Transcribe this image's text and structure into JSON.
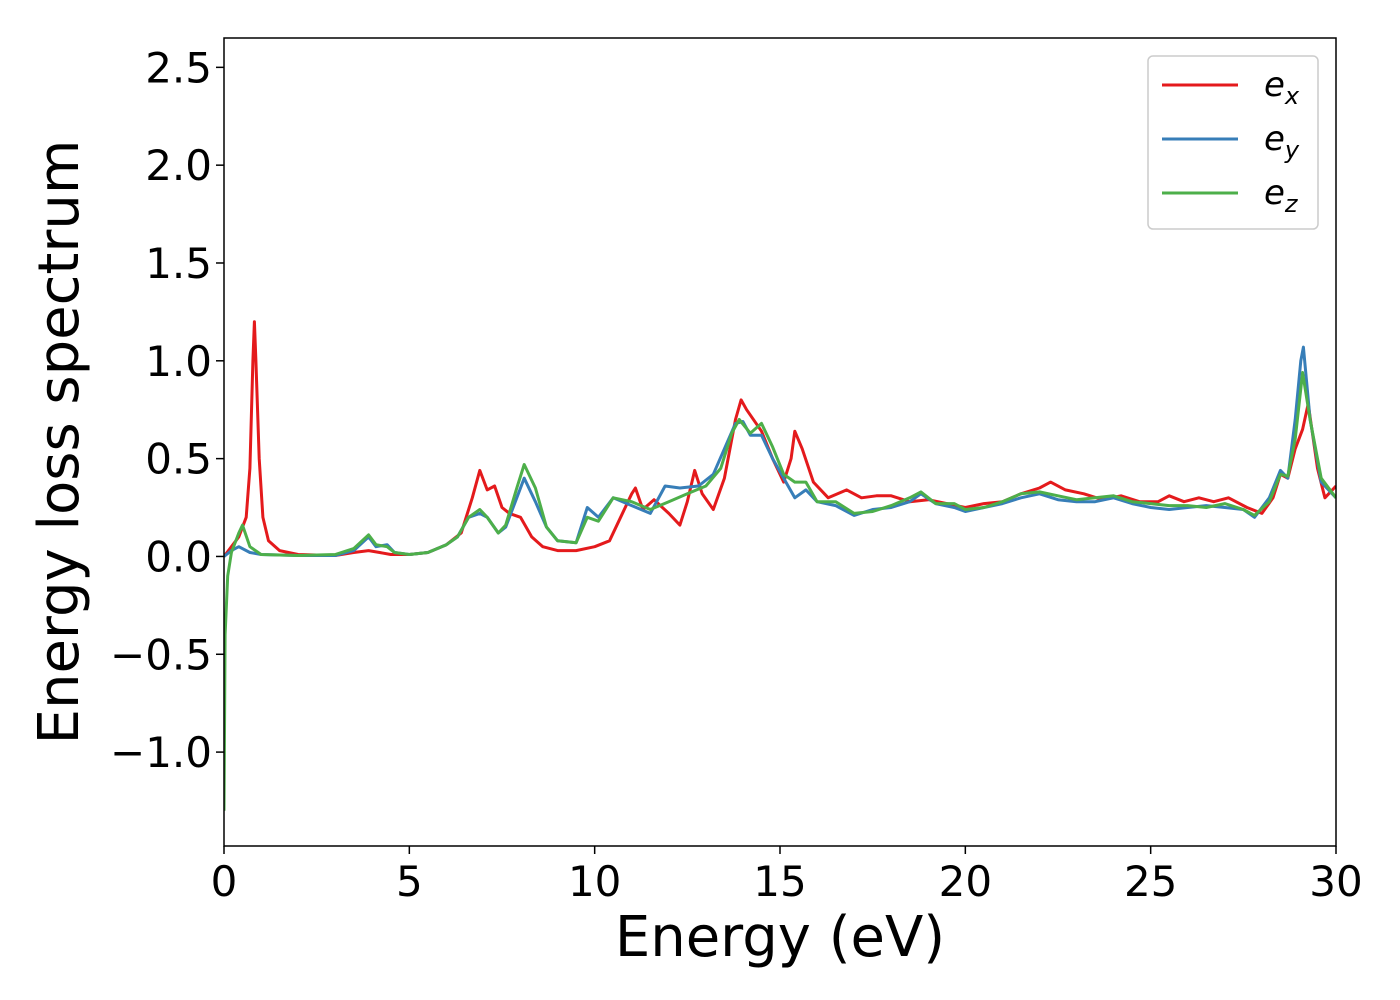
{
  "chart_data": {
    "type": "line",
    "title": "",
    "xlabel": "Energy (eV)",
    "ylabel": "Energy loss spectrum",
    "xlim": [
      0,
      30
    ],
    "ylim": [
      -1.48,
      2.65
    ],
    "xticks": [
      0,
      5,
      10,
      15,
      20,
      25,
      30
    ],
    "yticks": [
      -1.0,
      -0.5,
      0.0,
      0.5,
      1.0,
      1.5,
      2.0,
      2.5
    ],
    "xtick_labels": [
      "0",
      "5",
      "10",
      "15",
      "20",
      "25",
      "30"
    ],
    "ytick_labels": [
      "−1.0",
      "−0.5",
      "0.0",
      "0.5",
      "1.0",
      "1.5",
      "2.0",
      "2.5"
    ],
    "grid": false,
    "legend_position": "top-right",
    "series": [
      {
        "name": "e_x",
        "label_main": "e",
        "label_sub": "x",
        "color": "#e41a1c",
        "points": [
          [
            0,
            0.0
          ],
          [
            0.2,
            0.05
          ],
          [
            0.4,
            0.1
          ],
          [
            0.6,
            0.2
          ],
          [
            0.7,
            0.45
          ],
          [
            0.78,
            1.0
          ],
          [
            0.82,
            1.2
          ],
          [
            0.86,
            1.0
          ],
          [
            0.95,
            0.5
          ],
          [
            1.05,
            0.2
          ],
          [
            1.2,
            0.08
          ],
          [
            1.5,
            0.03
          ],
          [
            2,
            0.01
          ],
          [
            3,
            0.005
          ],
          [
            3.5,
            0.02
          ],
          [
            3.9,
            0.03
          ],
          [
            4.2,
            0.02
          ],
          [
            4.5,
            0.01
          ],
          [
            5,
            0.01
          ],
          [
            5.5,
            0.02
          ],
          [
            6,
            0.06
          ],
          [
            6.4,
            0.12
          ],
          [
            6.7,
            0.3
          ],
          [
            6.9,
            0.44
          ],
          [
            7.1,
            0.34
          ],
          [
            7.3,
            0.36
          ],
          [
            7.5,
            0.25
          ],
          [
            7.7,
            0.22
          ],
          [
            8,
            0.2
          ],
          [
            8.3,
            0.1
          ],
          [
            8.6,
            0.05
          ],
          [
            9,
            0.03
          ],
          [
            9.5,
            0.03
          ],
          [
            10,
            0.05
          ],
          [
            10.4,
            0.08
          ],
          [
            10.7,
            0.2
          ],
          [
            11,
            0.32
          ],
          [
            11.1,
            0.35
          ],
          [
            11.3,
            0.24
          ],
          [
            11.6,
            0.29
          ],
          [
            12,
            0.22
          ],
          [
            12.3,
            0.16
          ],
          [
            12.5,
            0.28
          ],
          [
            12.7,
            0.44
          ],
          [
            12.9,
            0.32
          ],
          [
            13.2,
            0.24
          ],
          [
            13.5,
            0.4
          ],
          [
            13.8,
            0.7
          ],
          [
            13.95,
            0.8
          ],
          [
            14.1,
            0.75
          ],
          [
            14.5,
            0.64
          ],
          [
            14.8,
            0.5
          ],
          [
            15.1,
            0.38
          ],
          [
            15.3,
            0.5
          ],
          [
            15.4,
            0.64
          ],
          [
            15.6,
            0.55
          ],
          [
            15.9,
            0.38
          ],
          [
            16.3,
            0.3
          ],
          [
            16.8,
            0.34
          ],
          [
            17.2,
            0.3
          ],
          [
            17.6,
            0.31
          ],
          [
            18,
            0.31
          ],
          [
            18.5,
            0.28
          ],
          [
            19,
            0.29
          ],
          [
            19.5,
            0.27
          ],
          [
            20,
            0.25
          ],
          [
            20.5,
            0.27
          ],
          [
            21,
            0.28
          ],
          [
            21.5,
            0.32
          ],
          [
            22,
            0.35
          ],
          [
            22.3,
            0.38
          ],
          [
            22.7,
            0.34
          ],
          [
            23.2,
            0.32
          ],
          [
            23.7,
            0.29
          ],
          [
            24.2,
            0.31
          ],
          [
            24.7,
            0.28
          ],
          [
            25.2,
            0.28
          ],
          [
            25.5,
            0.31
          ],
          [
            25.9,
            0.28
          ],
          [
            26.3,
            0.3
          ],
          [
            26.7,
            0.28
          ],
          [
            27.1,
            0.3
          ],
          [
            27.6,
            0.25
          ],
          [
            28,
            0.22
          ],
          [
            28.3,
            0.3
          ],
          [
            28.5,
            0.42
          ],
          [
            28.7,
            0.4
          ],
          [
            28.9,
            0.55
          ],
          [
            29.1,
            0.65
          ],
          [
            29.25,
            0.78
          ],
          [
            29.5,
            0.45
          ],
          [
            29.7,
            0.3
          ],
          [
            30,
            0.36
          ]
        ]
      },
      {
        "name": "e_y",
        "label_main": "e",
        "label_sub": "y",
        "color": "#377eb8",
        "points": [
          [
            0,
            0.0
          ],
          [
            0.2,
            0.03
          ],
          [
            0.4,
            0.05
          ],
          [
            0.7,
            0.02
          ],
          [
            1,
            0.01
          ],
          [
            2,
            0.005
          ],
          [
            3,
            0.005
          ],
          [
            3.5,
            0.03
          ],
          [
            3.9,
            0.1
          ],
          [
            4.1,
            0.05
          ],
          [
            4.4,
            0.06
          ],
          [
            4.6,
            0.02
          ],
          [
            5,
            0.01
          ],
          [
            5.5,
            0.02
          ],
          [
            6,
            0.06
          ],
          [
            6.3,
            0.1
          ],
          [
            6.6,
            0.2
          ],
          [
            6.9,
            0.22
          ],
          [
            7.1,
            0.2
          ],
          [
            7.4,
            0.12
          ],
          [
            7.6,
            0.15
          ],
          [
            7.9,
            0.3
          ],
          [
            8.1,
            0.4
          ],
          [
            8.4,
            0.28
          ],
          [
            8.7,
            0.15
          ],
          [
            9,
            0.08
          ],
          [
            9.5,
            0.07
          ],
          [
            9.8,
            0.25
          ],
          [
            10.1,
            0.2
          ],
          [
            10.5,
            0.3
          ],
          [
            11,
            0.26
          ],
          [
            11.5,
            0.22
          ],
          [
            11.9,
            0.36
          ],
          [
            12.3,
            0.35
          ],
          [
            12.8,
            0.36
          ],
          [
            13.2,
            0.42
          ],
          [
            13.5,
            0.55
          ],
          [
            13.8,
            0.68
          ],
          [
            14,
            0.69
          ],
          [
            14.2,
            0.62
          ],
          [
            14.5,
            0.62
          ],
          [
            14.8,
            0.5
          ],
          [
            15.1,
            0.4
          ],
          [
            15.4,
            0.3
          ],
          [
            15.7,
            0.34
          ],
          [
            16,
            0.28
          ],
          [
            16.5,
            0.26
          ],
          [
            17,
            0.21
          ],
          [
            17.5,
            0.24
          ],
          [
            18,
            0.25
          ],
          [
            18.5,
            0.28
          ],
          [
            18.8,
            0.32
          ],
          [
            19.2,
            0.27
          ],
          [
            19.7,
            0.25
          ],
          [
            20,
            0.23
          ],
          [
            20.5,
            0.25
          ],
          [
            21,
            0.27
          ],
          [
            21.5,
            0.3
          ],
          [
            22,
            0.32
          ],
          [
            22.5,
            0.29
          ],
          [
            23,
            0.28
          ],
          [
            23.5,
            0.28
          ],
          [
            24,
            0.3
          ],
          [
            24.5,
            0.27
          ],
          [
            25,
            0.25
          ],
          [
            25.5,
            0.24
          ],
          [
            26,
            0.25
          ],
          [
            26.5,
            0.26
          ],
          [
            27,
            0.25
          ],
          [
            27.5,
            0.24
          ],
          [
            27.8,
            0.2
          ],
          [
            28.2,
            0.3
          ],
          [
            28.5,
            0.44
          ],
          [
            28.7,
            0.4
          ],
          [
            28.9,
            0.7
          ],
          [
            29.05,
            1.0
          ],
          [
            29.12,
            1.07
          ],
          [
            29.3,
            0.7
          ],
          [
            29.6,
            0.38
          ],
          [
            30,
            0.3
          ]
        ]
      },
      {
        "name": "e_z",
        "label_main": "e",
        "label_sub": "z",
        "color": "#4daf4a",
        "points": [
          [
            0,
            -1.3
          ],
          [
            0.03,
            -0.4
          ],
          [
            0.1,
            -0.1
          ],
          [
            0.2,
            0.02
          ],
          [
            0.4,
            0.12
          ],
          [
            0.5,
            0.16
          ],
          [
            0.7,
            0.05
          ],
          [
            1,
            0.01
          ],
          [
            2,
            0.005
          ],
          [
            3,
            0.01
          ],
          [
            3.5,
            0.04
          ],
          [
            3.9,
            0.11
          ],
          [
            4.1,
            0.06
          ],
          [
            4.4,
            0.05
          ],
          [
            4.6,
            0.02
          ],
          [
            5,
            0.01
          ],
          [
            5.5,
            0.02
          ],
          [
            6,
            0.06
          ],
          [
            6.3,
            0.1
          ],
          [
            6.6,
            0.2
          ],
          [
            6.9,
            0.24
          ],
          [
            7.1,
            0.2
          ],
          [
            7.4,
            0.12
          ],
          [
            7.6,
            0.16
          ],
          [
            7.9,
            0.35
          ],
          [
            8.1,
            0.47
          ],
          [
            8.4,
            0.35
          ],
          [
            8.7,
            0.15
          ],
          [
            9,
            0.08
          ],
          [
            9.5,
            0.07
          ],
          [
            9.8,
            0.2
          ],
          [
            10.1,
            0.18
          ],
          [
            10.5,
            0.3
          ],
          [
            11,
            0.28
          ],
          [
            11.5,
            0.24
          ],
          [
            12,
            0.28
          ],
          [
            12.5,
            0.32
          ],
          [
            13,
            0.36
          ],
          [
            13.4,
            0.45
          ],
          [
            13.7,
            0.63
          ],
          [
            13.9,
            0.7
          ],
          [
            14.2,
            0.63
          ],
          [
            14.5,
            0.68
          ],
          [
            14.8,
            0.56
          ],
          [
            15.1,
            0.42
          ],
          [
            15.4,
            0.38
          ],
          [
            15.7,
            0.38
          ],
          [
            16,
            0.28
          ],
          [
            16.5,
            0.28
          ],
          [
            17,
            0.22
          ],
          [
            17.5,
            0.23
          ],
          [
            18,
            0.26
          ],
          [
            18.5,
            0.3
          ],
          [
            18.8,
            0.33
          ],
          [
            19.2,
            0.27
          ],
          [
            19.7,
            0.27
          ],
          [
            20,
            0.24
          ],
          [
            20.5,
            0.25
          ],
          [
            21,
            0.28
          ],
          [
            21.5,
            0.32
          ],
          [
            22,
            0.33
          ],
          [
            22.5,
            0.31
          ],
          [
            23,
            0.29
          ],
          [
            23.5,
            0.3
          ],
          [
            24,
            0.31
          ],
          [
            24.5,
            0.28
          ],
          [
            25,
            0.27
          ],
          [
            25.5,
            0.26
          ],
          [
            26,
            0.26
          ],
          [
            26.5,
            0.25
          ],
          [
            27,
            0.27
          ],
          [
            27.5,
            0.24
          ],
          [
            27.8,
            0.21
          ],
          [
            28.2,
            0.28
          ],
          [
            28.5,
            0.42
          ],
          [
            28.7,
            0.41
          ],
          [
            28.9,
            0.6
          ],
          [
            29.1,
            0.94
          ],
          [
            29.3,
            0.7
          ],
          [
            29.6,
            0.4
          ],
          [
            30,
            0.3
          ]
        ]
      }
    ]
  }
}
